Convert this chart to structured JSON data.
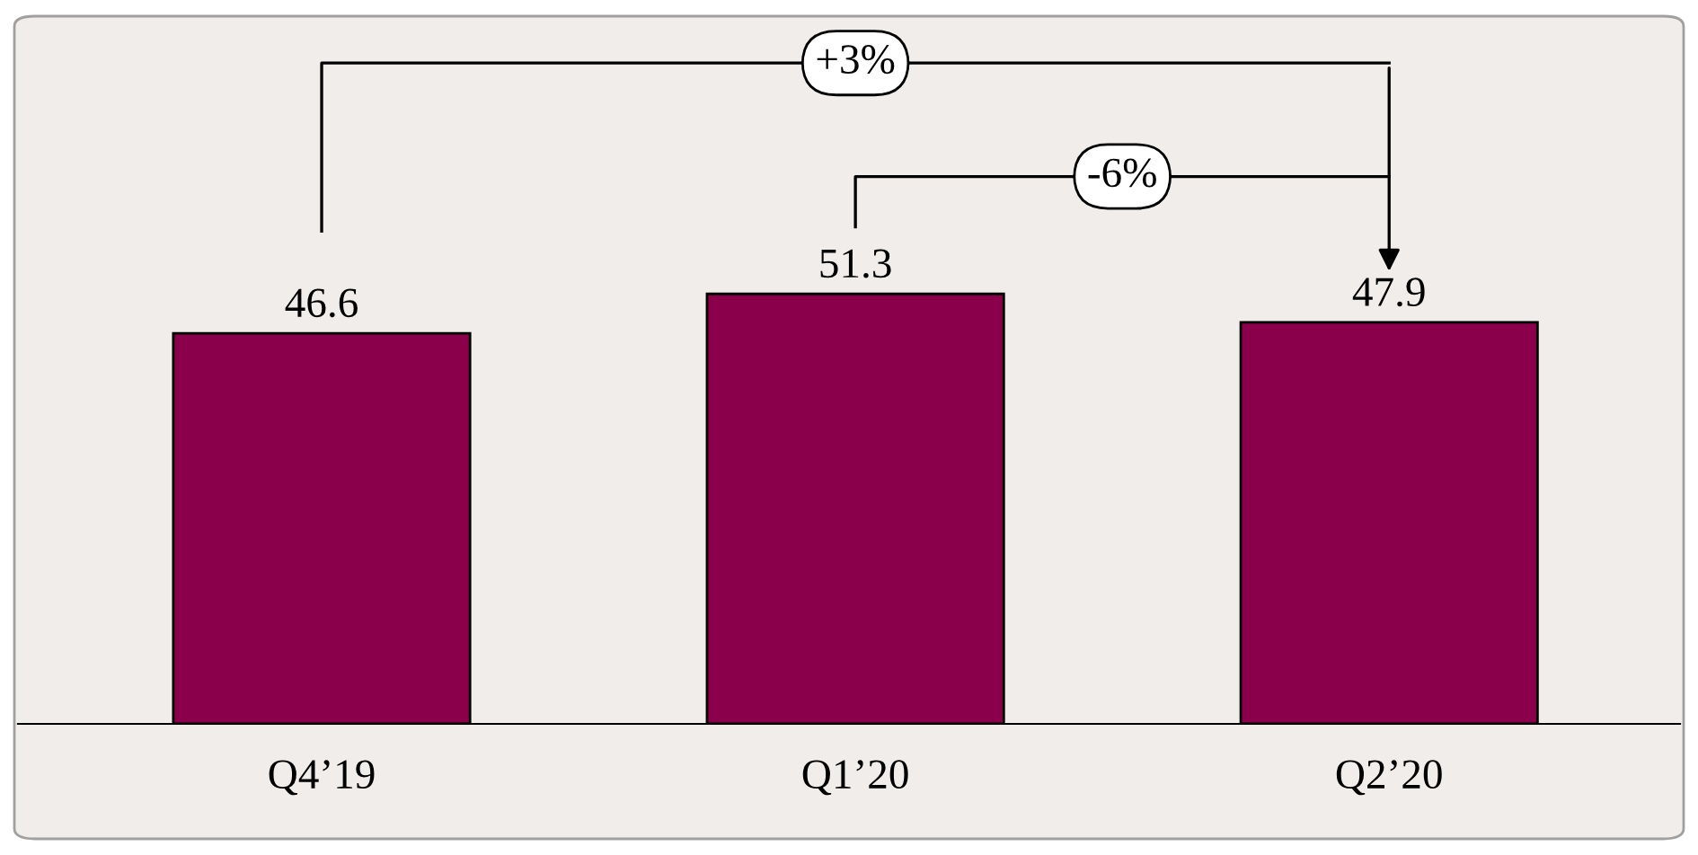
{
  "chart_data": {
    "type": "bar",
    "categories": [
      "Q4’19",
      "Q1’20",
      "Q2’20"
    ],
    "values": [
      46.6,
      51.3,
      47.9
    ],
    "color": "#8b004b",
    "data_labels": true,
    "grid": false,
    "annotations": [
      "+3%",
      "-6%"
    ]
  }
}
